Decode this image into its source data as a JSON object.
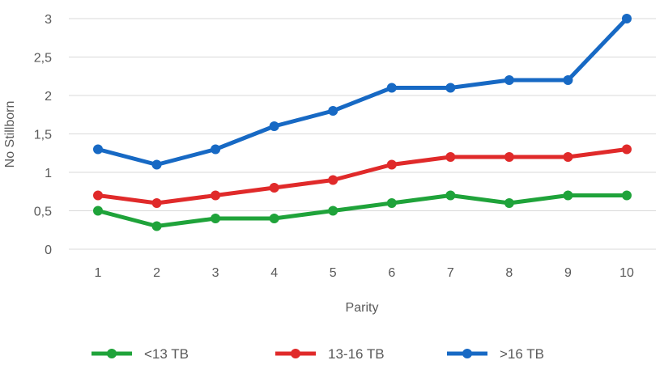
{
  "chart_data": {
    "type": "line",
    "title": "",
    "xlabel": "Parity",
    "ylabel": "No Stillborn",
    "categories": [
      "1",
      "2",
      "3",
      "4",
      "5",
      "6",
      "7",
      "8",
      "9",
      "10"
    ],
    "ylim": [
      0,
      3
    ],
    "yticks": [
      "0",
      "0,5",
      "1",
      "1,5",
      "2",
      "2,5",
      "3"
    ],
    "ytick_values": [
      0,
      0.5,
      1,
      1.5,
      2,
      2.5,
      3
    ],
    "grid": true,
    "legend_position": "bottom",
    "series": [
      {
        "name": "<13 TB",
        "color": "#1fa33a",
        "values": [
          0.5,
          0.3,
          0.4,
          0.4,
          0.5,
          0.6,
          0.7,
          0.6,
          0.7,
          0.7
        ]
      },
      {
        "name": "13-16 TB",
        "color": "#e02a2a",
        "values": [
          0.7,
          0.6,
          0.7,
          0.8,
          0.9,
          1.1,
          1.2,
          1.2,
          1.2,
          1.3
        ]
      },
      {
        "name": ">16 TB",
        "color": "#1769c4",
        "values": [
          1.3,
          1.1,
          1.3,
          1.6,
          1.8,
          2.1,
          2.1,
          2.2,
          2.2,
          3.0
        ]
      }
    ]
  }
}
